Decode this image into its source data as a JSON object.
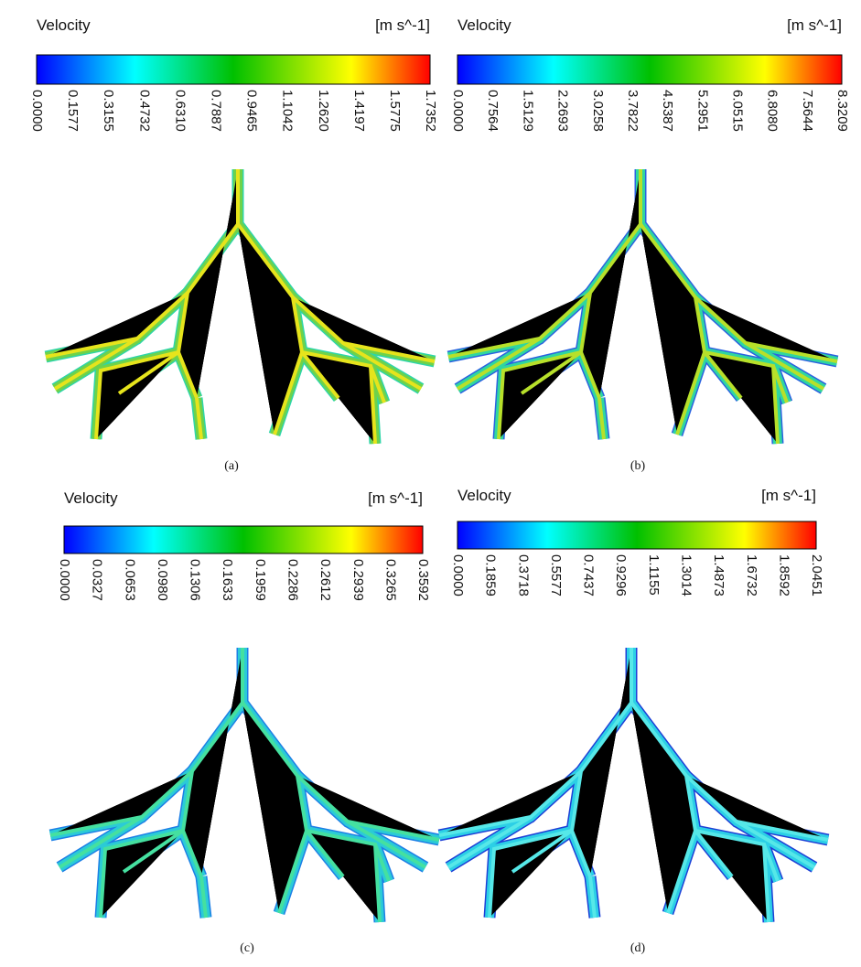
{
  "panels": [
    {
      "legend": {
        "title": "Velocity",
        "units": "[m s^-1]",
        "ticks": [
          "0.0000",
          "0.1577",
          "0.3155",
          "0.4732",
          "0.6310",
          "0.7887",
          "0.9465",
          "1.1042",
          "1.2620",
          "1.4197",
          "1.5775",
          "1.7352"
        ]
      },
      "caption": "(a)"
    },
    {
      "legend": {
        "title": "Velocity",
        "units": "[m s^-1]",
        "ticks": [
          "0.0000",
          "0.7564",
          "1.5129",
          "2.2693",
          "3.0258",
          "3.7822",
          "4.5387",
          "5.2951",
          "6.0515",
          "6.8080",
          "7.5644",
          "8.3209"
        ]
      },
      "caption": "(b)"
    },
    {
      "legend": {
        "title": "Velocity",
        "units": "[m s^-1]",
        "ticks": [
          "0.0000",
          "0.0327",
          "0.0653",
          "0.0980",
          "0.1306",
          "0.1633",
          "0.1959",
          "0.2286",
          "0.2612",
          "0.2939",
          "0.3265",
          "0.3592"
        ]
      },
      "caption": "(c)"
    },
    {
      "legend": {
        "title": "Velocity",
        "units": "[m s^-1]",
        "ticks": [
          "0.0000",
          "0.1859",
          "0.3718",
          "0.5577",
          "0.7437",
          "0.9296",
          "1.1155",
          "1.3014",
          "1.4873",
          "1.6732",
          "1.8592",
          "2.0451"
        ]
      },
      "caption": "(d)"
    }
  ]
}
